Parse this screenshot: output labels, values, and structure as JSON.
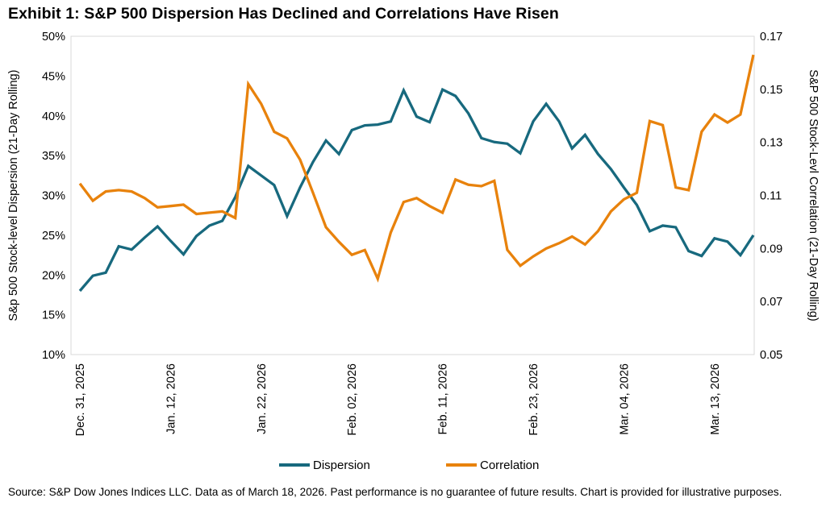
{
  "title": "Exhibit 1: S&P 500 Dispersion Has Declined and Correlations Have Risen",
  "footer": {
    "source_note": "Source: S&P Dow Jones Indices LLC. Data as of March 18, 2026. Past performance is no guarantee of future results. Chart is provided for illustrative purposes."
  },
  "colors": {
    "dispersion": "#17697E",
    "correlation": "#E8820C",
    "plot_border": "#D9D9D9",
    "text": "#000000"
  },
  "chart_data": {
    "type": "line",
    "title": "Exhibit 1: S&P 500 Dispersion Has Declined and Correlations Have Risen",
    "grid": "off",
    "legend_position": "bottom",
    "left_axis": {
      "label": "S&p 500 Stock-level Dispersion (21-Day Rolling)",
      "ticks": [
        "50%",
        "45%",
        "40%",
        "35%",
        "30%",
        "25%",
        "20%",
        "15%",
        "10%"
      ],
      "range": [
        10,
        50
      ],
      "unit": "percent"
    },
    "right_axis": {
      "label": "S&P 500 Stock-Levl Correlation (21-Day Rolling)",
      "ticks": [
        "0.17",
        "0.15",
        "0.13",
        "0.11",
        "0.09",
        "0.07",
        "0.05"
      ],
      "range": [
        0.05,
        0.17
      ]
    },
    "x_axis": {
      "tick_labels": [
        "Dec. 31, 2025",
        "Jan. 12, 2026",
        "Jan. 22, 2026",
        "Feb. 02, 2026",
        "Feb. 11, 2026",
        "Feb. 23, 2026",
        "Mar. 04, 2026",
        "Mar. 13, 2026"
      ],
      "tick_indices": [
        0,
        7,
        14,
        21,
        28,
        35,
        42,
        49
      ],
      "points_total": 53
    },
    "series": [
      {
        "name": "Dispersion",
        "axis": "left",
        "color": "#17697E",
        "values": [
          18.0,
          19.9,
          20.3,
          23.6,
          23.2,
          24.7,
          26.1,
          24.3,
          22.6,
          24.9,
          26.2,
          26.8,
          29.8,
          33.7,
          32.5,
          31.3,
          27.4,
          31.0,
          34.2,
          36.9,
          35.2,
          38.2,
          38.8,
          38.9,
          39.3,
          43.2,
          39.9,
          39.2,
          43.3,
          42.5,
          40.3,
          37.2,
          36.7,
          36.5,
          35.3,
          39.3,
          41.5,
          39.3,
          35.9,
          37.6,
          35.2,
          33.3,
          31.0,
          28.8,
          25.5,
          26.2,
          26.0,
          23.0,
          22.4,
          24.6,
          24.2,
          22.5,
          25.0
        ]
      },
      {
        "name": "Correlation",
        "axis": "right",
        "color": "#E8820C",
        "values": [
          0.1145,
          0.108,
          0.1115,
          0.112,
          0.1115,
          0.109,
          0.1055,
          0.106,
          0.1065,
          0.103,
          0.1035,
          0.104,
          0.1015,
          0.152,
          0.1445,
          0.134,
          0.1315,
          0.1235,
          0.111,
          0.098,
          0.0925,
          0.0876,
          0.0894,
          0.0786,
          0.096,
          0.1075,
          0.109,
          0.106,
          0.1035,
          0.116,
          0.114,
          0.1135,
          0.1155,
          0.0895,
          0.0835,
          0.087,
          0.09,
          0.092,
          0.0945,
          0.0915,
          0.0965,
          0.104,
          0.1085,
          0.111,
          0.138,
          0.1365,
          0.113,
          0.112,
          0.134,
          0.1405,
          0.1375,
          0.1405,
          0.163
        ]
      }
    ]
  }
}
